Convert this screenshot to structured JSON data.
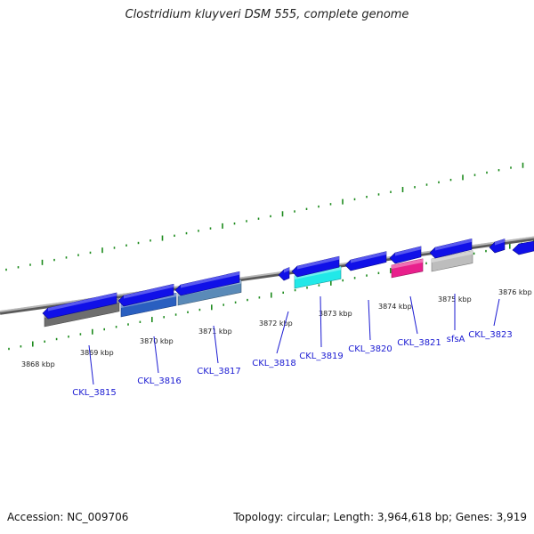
{
  "title": "Clostridium kluyveri DSM 555, complete genome",
  "footer": {
    "accession": "Accession: NC_009706",
    "summary": "Topology: circular; Length: 3,964,618 bp; Genes: 3,919"
  },
  "colors": {
    "forward_arrow": "#1010e8",
    "tick": "#1c8a1c",
    "backbone": "#8a8a8a",
    "label": "#1a1ad2"
  },
  "kbp_labels": [
    "3868 kbp",
    "3869 kbp",
    "3870 kbp",
    "3871 kbp",
    "3872 kbp",
    "3873 kbp",
    "3874 kbp",
    "3875 kbp",
    "3876 kbp"
  ],
  "genes": [
    {
      "label": "CKL_3815",
      "color": "#1010e8"
    },
    {
      "label": "CKL_3816",
      "color": "#1010e8"
    },
    {
      "label": "CKL_3817",
      "color": "#1010e8"
    },
    {
      "label": "CKL_3818",
      "color": "#1010e8"
    },
    {
      "label": "CKL_3819",
      "color": "#1010e8"
    },
    {
      "label": "CKL_3820",
      "color": "#1010e8"
    },
    {
      "label": "CKL_3821",
      "color": "#1010e8"
    },
    {
      "label": "sfsA",
      "color": "#1010e8"
    },
    {
      "label": "CKL_3823",
      "color": "#1010e8"
    }
  ],
  "features": [
    {
      "name": "grey-block",
      "color": "#6e6e6e"
    },
    {
      "name": "blue-block",
      "color": "#2a5fc0"
    },
    {
      "name": "steel-block",
      "color": "#5a8ab8"
    },
    {
      "name": "cyan-block",
      "color": "#22e8e8"
    },
    {
      "name": "magenta-block",
      "color": "#e8208c"
    },
    {
      "name": "lightgrey-block",
      "color": "#bdbdbd"
    }
  ]
}
